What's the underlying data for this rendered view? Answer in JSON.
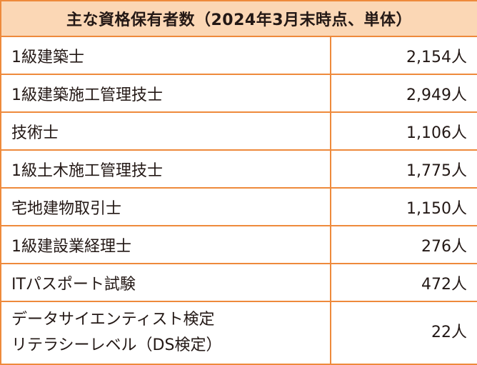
{
  "title": "主な資格保有者数（2024年3月末時点、単体）",
  "rows": [
    {
      "name": "1級建築士",
      "count": "2,154人"
    },
    {
      "name": "1級建築施工管理技士",
      "count": "2,949人"
    },
    {
      "name": "技術士",
      "count": "1,106人"
    },
    {
      "name": "1級土木施工管理技士",
      "count": "1,775人"
    },
    {
      "name": "宅地建物取引士",
      "count": "1,150人"
    },
    {
      "name": "1級建設業経理士",
      "count": "276人"
    },
    {
      "name": "ITパスポート試験",
      "count": "472人"
    },
    {
      "name_lines": [
        "データサイエンティスト検定",
        "リテラシーレベル（DS検定）"
      ],
      "count": "22人"
    }
  ]
}
